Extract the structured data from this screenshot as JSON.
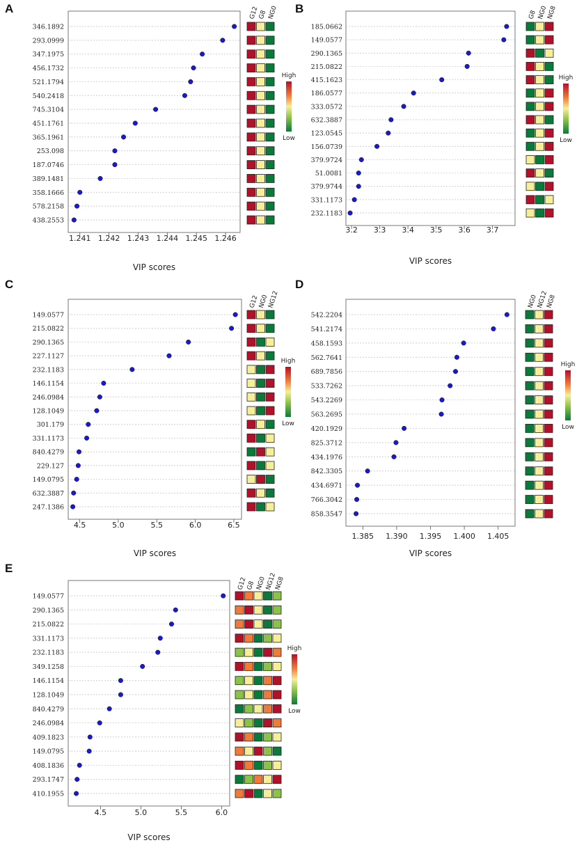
{
  "colors": {
    "point": "#1a1acc",
    "low": "#0a7a3a",
    "lowMid": "#8bc34a",
    "mid": "#f5ef9a",
    "highMid": "#f07a3a",
    "high": "#b3102a"
  },
  "legend": {
    "high_label": "High",
    "low_label": "Low"
  },
  "chart_data": [
    {
      "panel": "A",
      "type": "scatter",
      "xlabel": "VIP scores",
      "xticks": [
        "1.241",
        "1.242",
        "1.243",
        "1.244",
        "1.245",
        "1.246"
      ],
      "xlim": [
        1.2406,
        1.2465
      ],
      "categories": [
        "346.1892",
        "293.0999",
        "347.1975",
        "456.1732",
        "521.1794",
        "540.2418",
        "745.3104",
        "451.1761",
        "365.1961",
        "253.098",
        "187.0746",
        "389.1481",
        "358.1666",
        "578.2158",
        "438.2553"
      ],
      "values": [
        1.2463,
        1.2459,
        1.2452,
        1.2449,
        1.2448,
        1.2446,
        1.2436,
        1.2429,
        1.2425,
        1.2422,
        1.2422,
        1.2417,
        1.241,
        1.2409,
        1.2408
      ],
      "heatmap_columns": [
        "G12",
        "G8",
        "NG0"
      ],
      "heatmap": [
        [
          "H",
          "M",
          "L"
        ],
        [
          "H",
          "M",
          "L"
        ],
        [
          "H",
          "M",
          "L"
        ],
        [
          "H",
          "M",
          "L"
        ],
        [
          "H",
          "M",
          "L"
        ],
        [
          "H",
          "M",
          "L"
        ],
        [
          "H",
          "M",
          "L"
        ],
        [
          "H",
          "M",
          "L"
        ],
        [
          "H",
          "M",
          "L"
        ],
        [
          "H",
          "M",
          "L"
        ],
        [
          "H",
          "M",
          "L"
        ],
        [
          "H",
          "M",
          "L"
        ],
        [
          "H",
          "M",
          "L"
        ],
        [
          "H",
          "M",
          "L"
        ],
        [
          "H",
          "M",
          "L"
        ]
      ]
    },
    {
      "panel": "B",
      "type": "scatter",
      "xlabel": "VIP scores",
      "xticks": [
        "3.2",
        "3.3",
        "3.4",
        "3.5",
        "3.6",
        "3.7"
      ],
      "xlim": [
        3.18,
        3.78
      ],
      "categories": [
        "185.0662",
        "149.0577",
        "290.1365",
        "215.0822",
        "415.1623",
        "186.0577",
        "333.0572",
        "632.3887",
        "123.0545",
        "156.0739",
        "379.9724",
        "51.0081",
        "379.9744",
        "331.1173",
        "232.1183"
      ],
      "values": [
        3.75,
        3.74,
        3.615,
        3.61,
        3.52,
        3.42,
        3.385,
        3.34,
        3.33,
        3.29,
        3.235,
        3.225,
        3.225,
        3.21,
        3.195
      ],
      "heatmap_columns": [
        "G8",
        "NG0",
        "NG8"
      ],
      "heatmap": [
        [
          "L",
          "M",
          "H"
        ],
        [
          "L",
          "M",
          "H"
        ],
        [
          "H",
          "L",
          "M"
        ],
        [
          "H",
          "M",
          "L"
        ],
        [
          "H",
          "M",
          "L"
        ],
        [
          "L",
          "M",
          "H"
        ],
        [
          "L",
          "M",
          "H"
        ],
        [
          "H",
          "M",
          "L"
        ],
        [
          "L",
          "M",
          "H"
        ],
        [
          "L",
          "M",
          "H"
        ],
        [
          "M",
          "L",
          "H"
        ],
        [
          "H",
          "M",
          "L"
        ],
        [
          "M",
          "L",
          "H"
        ],
        [
          "H",
          "L",
          "M"
        ],
        [
          "M",
          "L",
          "H"
        ]
      ]
    },
    {
      "panel": "C",
      "type": "scatter",
      "xlabel": "VIP scores",
      "xticks": [
        "4.5",
        "5.0",
        "5.5",
        "6.0",
        "6.5"
      ],
      "xlim": [
        4.35,
        6.6
      ],
      "categories": [
        "149.0577",
        "215.0822",
        "290.1365",
        "227.1127",
        "232.1183",
        "146.1154",
        "246.0984",
        "128.1049",
        "301.179",
        "331.1173",
        "840.4279",
        "229.127",
        "149.0795",
        "632.3887",
        "247.1386"
      ],
      "values": [
        6.52,
        6.47,
        5.91,
        5.66,
        5.18,
        4.81,
        4.76,
        4.72,
        4.61,
        4.59,
        4.49,
        4.48,
        4.46,
        4.42,
        4.41
      ],
      "heatmap_columns": [
        "G12",
        "NG0",
        "NG12"
      ],
      "heatmap": [
        [
          "H",
          "M",
          "L"
        ],
        [
          "H",
          "M",
          "L"
        ],
        [
          "H",
          "L",
          "M"
        ],
        [
          "H",
          "M",
          "L"
        ],
        [
          "M",
          "L",
          "H"
        ],
        [
          "M",
          "L",
          "H"
        ],
        [
          "M",
          "L",
          "H"
        ],
        [
          "M",
          "L",
          "H"
        ],
        [
          "H",
          "M",
          "L"
        ],
        [
          "H",
          "L",
          "M"
        ],
        [
          "L",
          "H",
          "M"
        ],
        [
          "H",
          "L",
          "M"
        ],
        [
          "M",
          "H",
          "L"
        ],
        [
          "H",
          "M",
          "L"
        ],
        [
          "H",
          "L",
          "M"
        ]
      ]
    },
    {
      "panel": "D",
      "type": "scatter",
      "xlabel": "VIP scores",
      "xticks": [
        "1.385",
        "1.390",
        "1.395",
        "1.400",
        "1.405"
      ],
      "xlim": [
        1.3825,
        1.4075
      ],
      "categories": [
        "542.2204",
        "541.2174",
        "458.1593",
        "562.7641",
        "689.7856",
        "533.7262",
        "543.2269",
        "563.2695",
        "420.1929",
        "825.3712",
        "434.1976",
        "842.3305",
        "434.6971",
        "766.3042",
        "858.3547"
      ],
      "values": [
        1.4063,
        1.4043,
        1.3999,
        1.3989,
        1.3987,
        1.3979,
        1.3967,
        1.3966,
        1.3911,
        1.3899,
        1.3896,
        1.3857,
        1.3842,
        1.3841,
        1.384
      ],
      "heatmap_columns": [
        "NG0",
        "NG12",
        "NG8"
      ],
      "heatmap": [
        [
          "L",
          "M",
          "H"
        ],
        [
          "L",
          "M",
          "H"
        ],
        [
          "L",
          "M",
          "H"
        ],
        [
          "L",
          "M",
          "H"
        ],
        [
          "L",
          "M",
          "H"
        ],
        [
          "L",
          "M",
          "H"
        ],
        [
          "L",
          "M",
          "H"
        ],
        [
          "L",
          "M",
          "H"
        ],
        [
          "L",
          "M",
          "H"
        ],
        [
          "L",
          "M",
          "H"
        ],
        [
          "L",
          "M",
          "H"
        ],
        [
          "L",
          "M",
          "H"
        ],
        [
          "L",
          "M",
          "H"
        ],
        [
          "L",
          "M",
          "H"
        ],
        [
          "L",
          "M",
          "H"
        ]
      ]
    },
    {
      "panel": "E",
      "type": "scatter",
      "xlabel": "VIP scores",
      "xticks": [
        "4.5",
        "5.0",
        "5.5",
        "6.0"
      ],
      "xlim": [
        4.1,
        6.1
      ],
      "categories": [
        "149.0577",
        "290.1365",
        "215.0822",
        "331.1173",
        "232.1183",
        "349.1258",
        "146.1154",
        "128.1049",
        "840.4279",
        "246.0984",
        "409.1823",
        "149.0795",
        "408.1836",
        "293.1747",
        "410.1955"
      ],
      "values": [
        6.02,
        5.43,
        5.38,
        5.24,
        5.21,
        5.02,
        4.75,
        4.75,
        4.61,
        4.49,
        4.37,
        4.36,
        4.24,
        4.21,
        4.2
      ],
      "heatmap_columns": [
        "G12",
        "G8",
        "NG0",
        "NG12",
        "NG8"
      ],
      "heatmap": [
        [
          "H",
          "HM",
          "M",
          "L",
          "LM"
        ],
        [
          "HM",
          "H",
          "M",
          "L",
          "LM"
        ],
        [
          "HM",
          "H",
          "M",
          "L",
          "LM"
        ],
        [
          "H",
          "HM",
          "L",
          "LM",
          "M"
        ],
        [
          "LM",
          "M",
          "L",
          "H",
          "HM"
        ],
        [
          "H",
          "HM",
          "L",
          "LM",
          "M"
        ],
        [
          "LM",
          "M",
          "L",
          "HM",
          "H"
        ],
        [
          "LM",
          "M",
          "L",
          "HM",
          "H"
        ],
        [
          "L",
          "LM",
          "M",
          "HM",
          "H"
        ],
        [
          "M",
          "LM",
          "L",
          "H",
          "HM"
        ],
        [
          "H",
          "HM",
          "L",
          "LM",
          "M"
        ],
        [
          "HM",
          "M",
          "H",
          "LM",
          "L"
        ],
        [
          "H",
          "HM",
          "L",
          "LM",
          "M"
        ],
        [
          "L",
          "LM",
          "HM",
          "M",
          "H"
        ],
        [
          "HM",
          "H",
          "L",
          "M",
          "LM"
        ]
      ]
    }
  ]
}
